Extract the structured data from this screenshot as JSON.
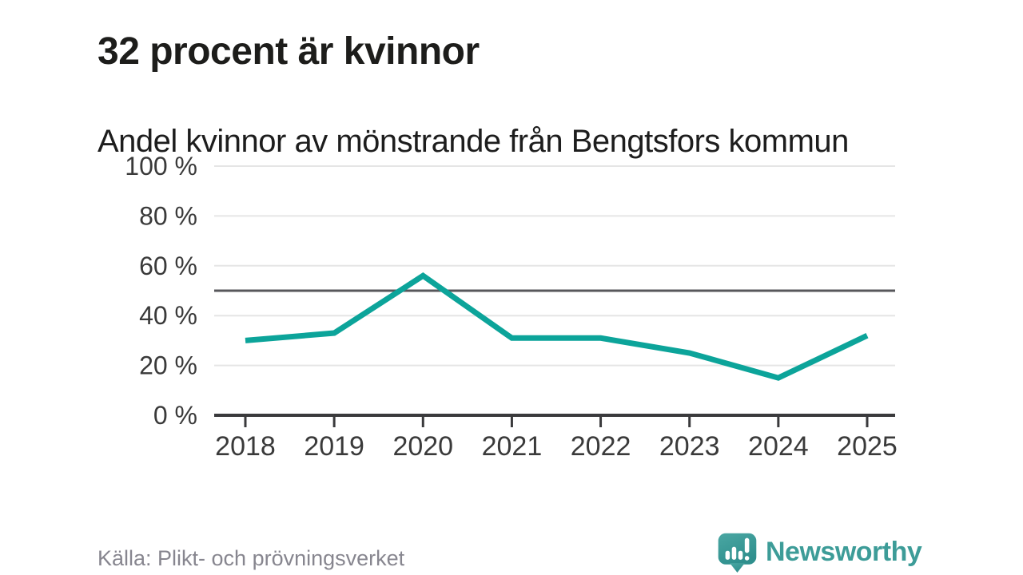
{
  "header": {
    "title": "32 procent är kvinnor",
    "subtitle": "Andel kvinnor av mönstrande från Bengtsfors kommun"
  },
  "chart_data": {
    "type": "line",
    "title": "Andel kvinnor av mönstrande från Bengtsfors kommun",
    "x": [
      "2018",
      "2019",
      "2020",
      "2021",
      "2022",
      "2023",
      "2024",
      "2025"
    ],
    "series": [
      {
        "name": "Andel kvinnor",
        "values": [
          30,
          33,
          56,
          31,
          31,
          25,
          15,
          32
        ]
      }
    ],
    "ylim": [
      0,
      100
    ],
    "yticks": [
      0,
      20,
      40,
      60,
      80,
      100
    ],
    "ytick_suffix": " %",
    "reference_line": 50,
    "grid": true,
    "legend": "none"
  },
  "footer": {
    "source": "Källa: Plikt- och prövningsverket",
    "brand_name": "Newsworthy"
  },
  "colors": {
    "line": "#0ca49a",
    "reference": "#57575b",
    "grid": "#e5e5e5",
    "axis": "#3a3a3c",
    "tick_label": "#3a3a3a",
    "title": "#1d1d1b",
    "subtitle": "#1d1d1d",
    "source": "#87868f",
    "brand": "#3d9c98",
    "brand_icon_top": "#4aa7a3",
    "brand_icon_bottom": "#2f8f8d",
    "background": "#ffffff"
  }
}
